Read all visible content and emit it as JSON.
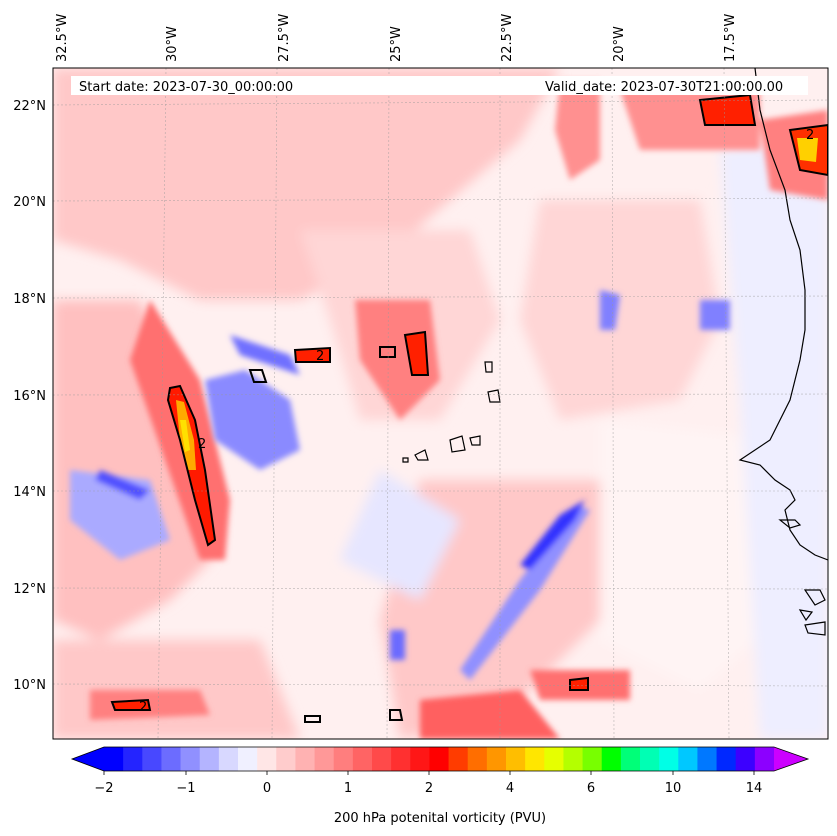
{
  "header": {
    "start_date": "Start date: 2023-07-30_00:00:00",
    "valid_date": "Valid_date: 2023-07-30T21:00:00.00"
  },
  "map": {
    "lon_labels": [
      "32.5°W",
      "30°W",
      "27.5°W",
      "25°W",
      "22.5°W",
      "20°W",
      "17.5°W"
    ],
    "lat_labels": [
      "22°N",
      "20°N",
      "18°N",
      "16°N",
      "14°N",
      "12°N",
      "10°N"
    ],
    "contour_label": "2",
    "colors": {
      "negative_strong": "#1010ff",
      "negative_weak": "#c8c8ff",
      "near_zero": "#eeeeff",
      "positive_weak": "#ffd0d0",
      "positive_mid": "#ff7070",
      "positive_strong": "#ff1010",
      "orange": "#ffaa00",
      "yellow": "#ffe000",
      "coastline": "#000000"
    }
  },
  "colorbar": {
    "label": "200 hPa potenital vorticity (PVU)",
    "tick_labels": [
      "−2",
      "−1",
      "0",
      "1",
      "2",
      "4",
      "6",
      "10",
      "14"
    ],
    "colors": [
      "#0000ff",
      "#2424ff",
      "#4848ff",
      "#6c6cff",
      "#9090ff",
      "#b4b4ff",
      "#d8d8ff",
      "#f0f0ff",
      "#ffe6e6",
      "#ffcccc",
      "#ffb2b2",
      "#ff9898",
      "#ff7e7e",
      "#ff6464",
      "#ff4a4a",
      "#ff3030",
      "#ff1616",
      "#ff0000",
      "#ff3c00",
      "#ff6e00",
      "#ff9600",
      "#ffbe00",
      "#ffe600",
      "#e6ff00",
      "#b4ff00",
      "#78ff00",
      "#00ff00",
      "#00ff78",
      "#00ffb4",
      "#00ffe6",
      "#00c8ff",
      "#0078ff",
      "#0028ff",
      "#3c00ff",
      "#8c00ff"
    ],
    "left_extend_color": "#0000ff",
    "right_extend_color": "#cc00ff"
  }
}
